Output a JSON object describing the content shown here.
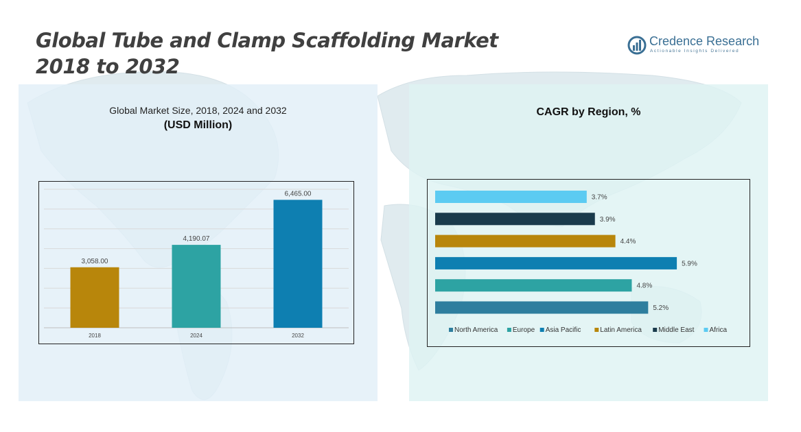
{
  "title": {
    "line1": "Global Tube and Clamp Scaffolding Market",
    "line2": "2018 to 2032"
  },
  "logo": {
    "name": "Credence Research",
    "tagline": "Actionable Insights Delivered",
    "icon": "bar-chart-in-circle-icon"
  },
  "colors": {
    "gold": "#B8860B",
    "teal": "#2DA3A3",
    "blue": "#0E7FB1",
    "navy": "#1A3B4C",
    "sky": "#5CCBF2",
    "steel": "#2E7E9E",
    "left_panel_bg": "#E2EFF8",
    "right_panel_bg": "#DEF3F3"
  },
  "left_panel": {
    "subtitle": "Global Market Size, 2018, 2024 and 2032",
    "unit": "(USD Million)"
  },
  "right_panel": {
    "title": "CAGR by Region, %"
  },
  "chart_data": [
    {
      "type": "bar",
      "title": "Global Market Size, 2018, 2024 and 2032",
      "ylabel": "(USD Million)",
      "categories": [
        "2018",
        "2024",
        "2032"
      ],
      "values": [
        3058.0,
        4190.07,
        6465.0
      ],
      "value_labels": [
        "3,058.00",
        "4,190.07",
        "6,465.00"
      ],
      "colors": [
        "#B8860B",
        "#2DA3A3",
        "#0E7FB1"
      ],
      "ylim": [
        0,
        7000
      ],
      "grid": true,
      "legend": "none"
    },
    {
      "type": "bar",
      "orientation": "horizontal",
      "title": "CAGR by Region, %",
      "categories": [
        "Africa",
        "Middle East",
        "Latin America",
        "Asia Pacific",
        "Europe",
        "North America"
      ],
      "values": [
        3.7,
        3.9,
        4.4,
        5.9,
        4.8,
        5.2
      ],
      "value_labels": [
        "3.7%",
        "3.9%",
        "4.4%",
        "5.9%",
        "4.8%",
        "5.2%"
      ],
      "colors": [
        "#5CCBF2",
        "#1A3B4C",
        "#B8860B",
        "#0E7FB1",
        "#2DA3A3",
        "#2E7E9E"
      ],
      "xlim": [
        0,
        6.2
      ],
      "grid": false,
      "legend": "bottom",
      "legend_order": [
        "North America",
        "Europe",
        "Asia Pacific",
        "Latin America",
        "Middle East",
        "Africa"
      ]
    }
  ]
}
